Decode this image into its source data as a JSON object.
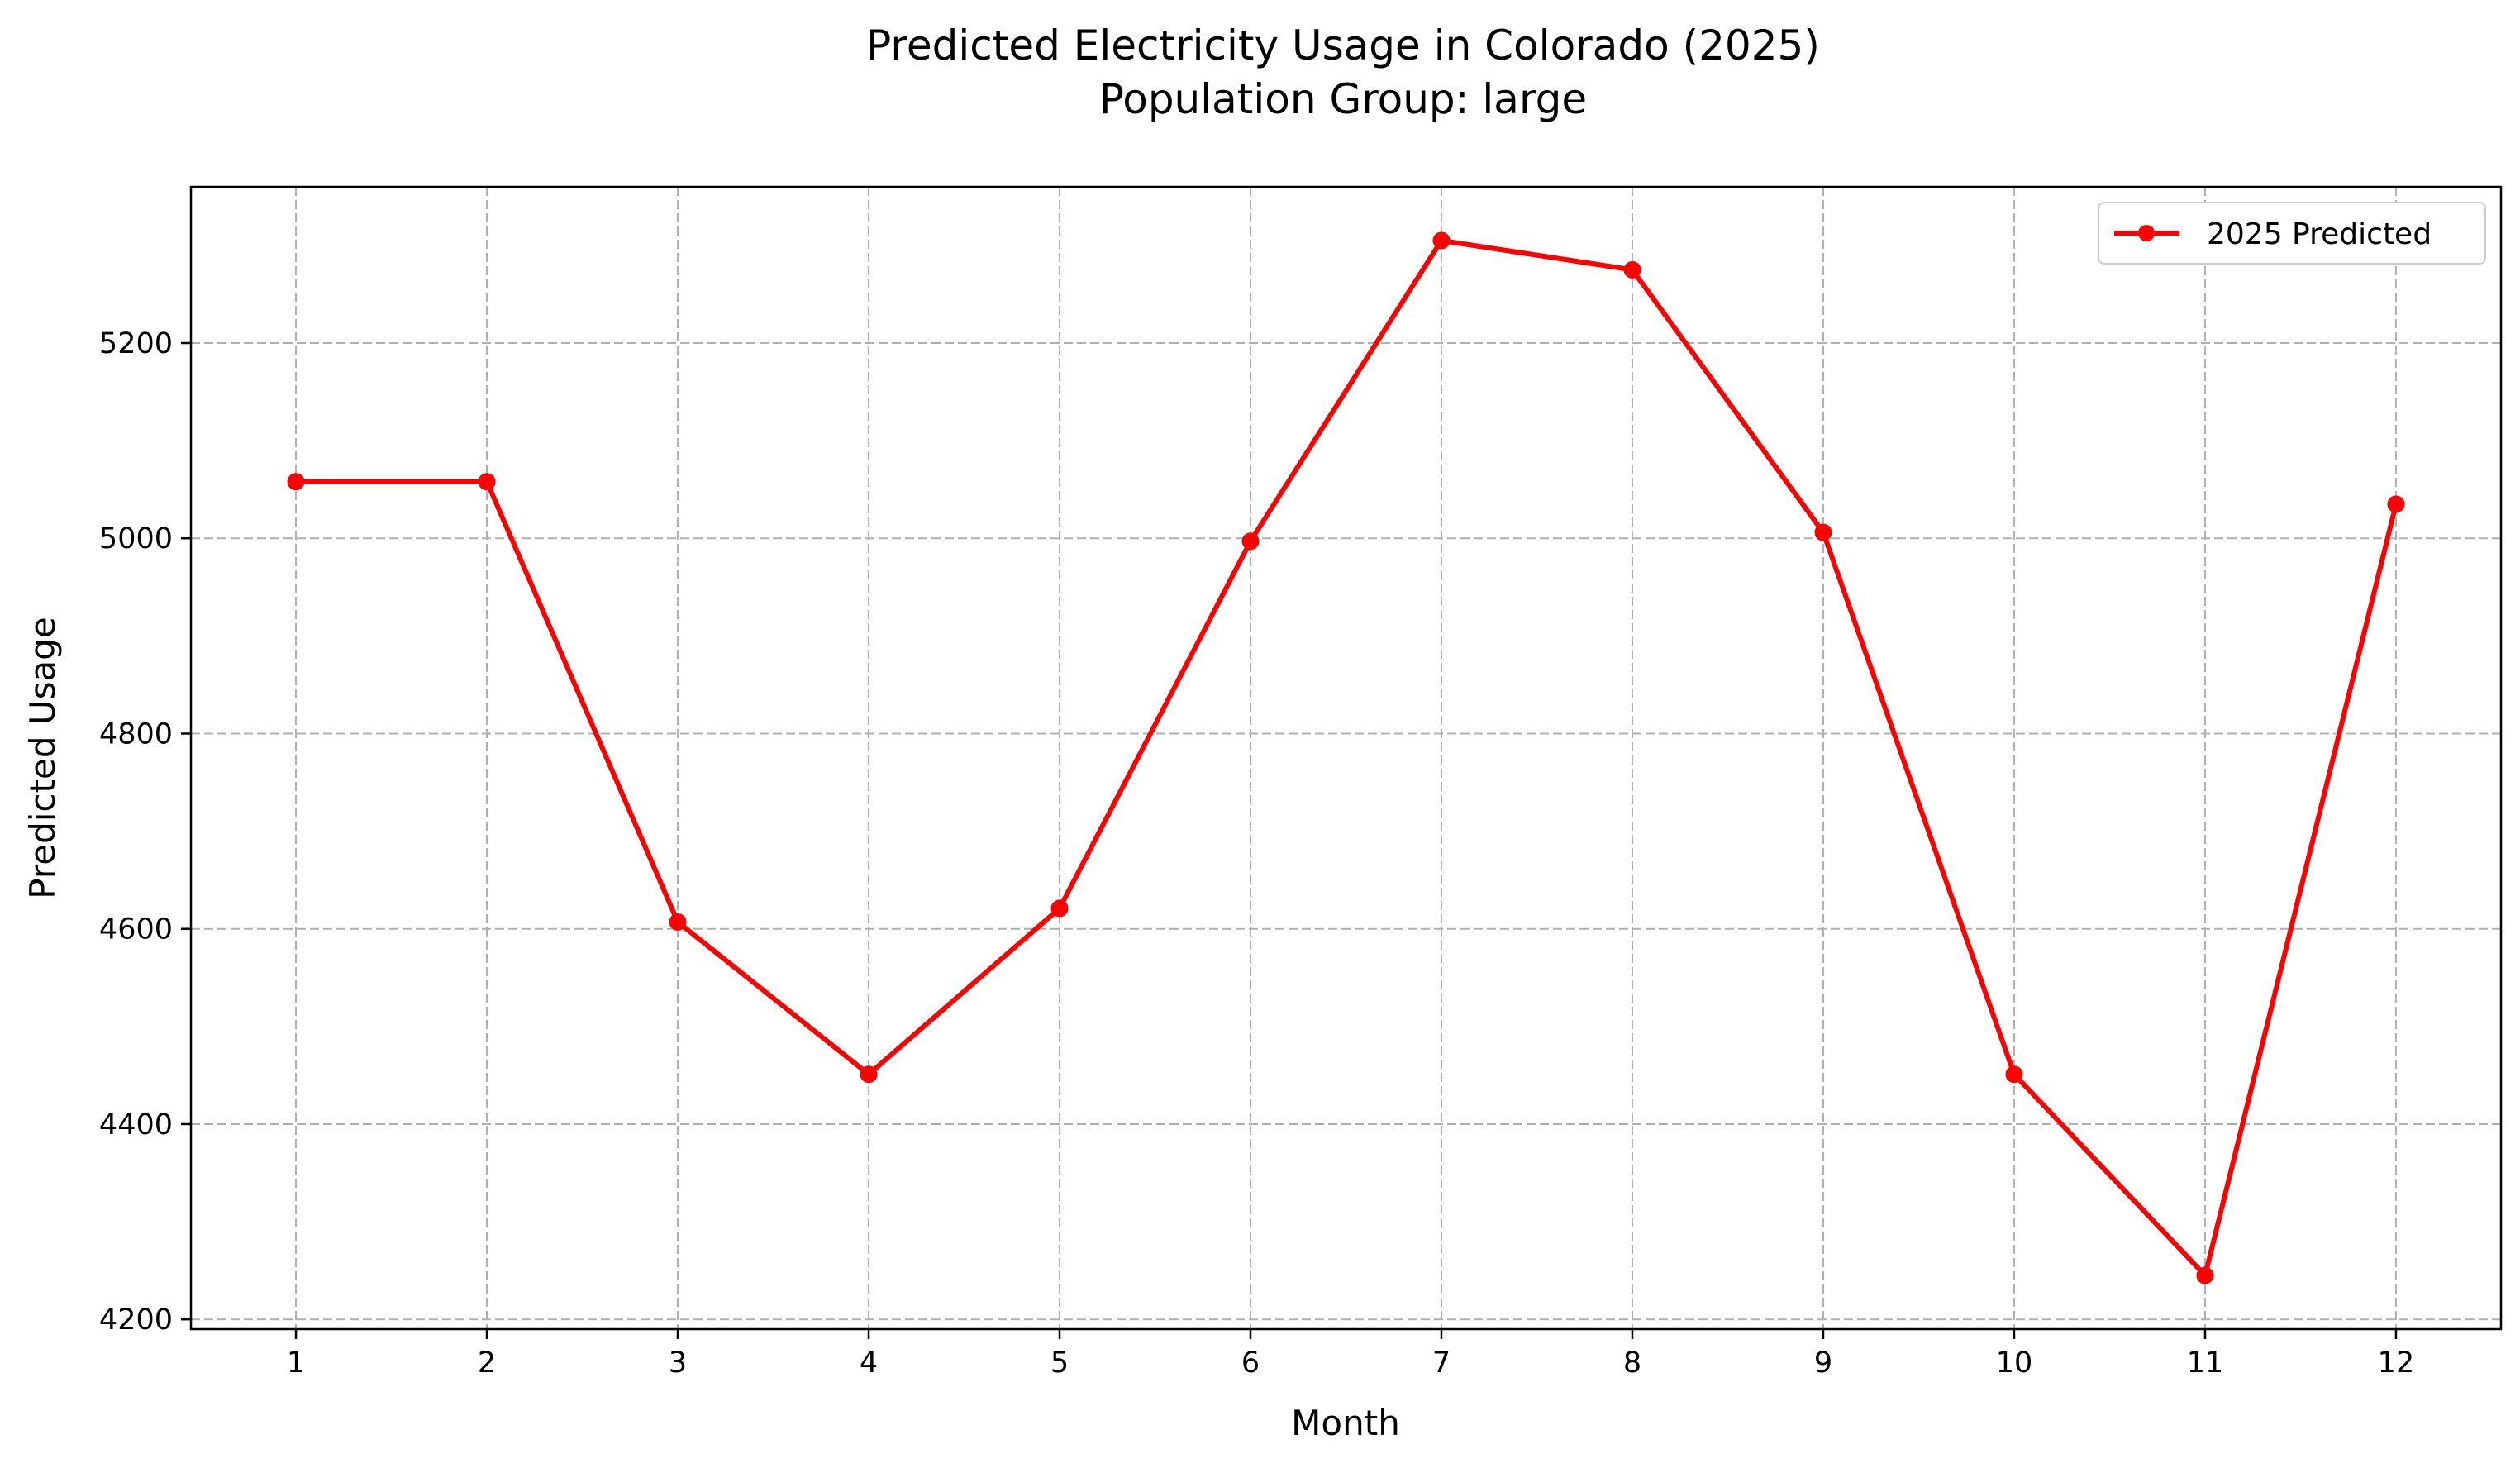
{
  "chart_data": {
    "type": "line",
    "title": "Predicted Electricity Usage in Colorado (2025)",
    "subtitle": "Population Group: large",
    "xlabel": "Month",
    "ylabel": "Predicted Usage",
    "x": [
      1,
      2,
      3,
      4,
      5,
      6,
      7,
      8,
      9,
      10,
      11,
      12
    ],
    "xticks": [
      "1",
      "2",
      "3",
      "4",
      "5",
      "6",
      "7",
      "8",
      "9",
      "10",
      "11",
      "12"
    ],
    "yticks": [
      4200,
      4400,
      4600,
      4800,
      5000,
      5200
    ],
    "xlim": [
      0.45,
      12.55
    ],
    "ylim": [
      4190,
      5360
    ],
    "grid": true,
    "legend_position": "top-right",
    "series": [
      {
        "name": "2025 Predicted",
        "color": "#ff0000",
        "marker": "circle",
        "values": [
          5058,
          5058,
          4607,
          4451,
          4621,
          4997,
          5305,
          5275,
          5006,
          4451,
          4245,
          5035
        ]
      }
    ]
  }
}
